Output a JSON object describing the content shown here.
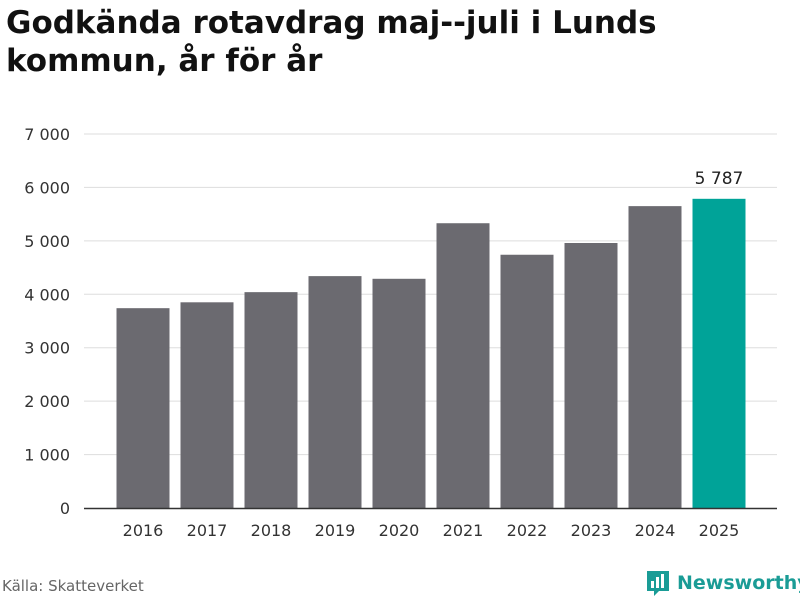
{
  "title": "Godkända rotavdrag maj--juli i Lunds kommun, år för år",
  "source": "Källa: Skatteverket",
  "brand": {
    "name": "Newsworthy",
    "icon": "bar-chart-logo-icon"
  },
  "colors": {
    "bar": "#6b6a70",
    "highlight": "#00a398",
    "grid": "#dddddd",
    "brand": "#1a9c96"
  },
  "chart_data": {
    "type": "bar",
    "title": "Godkända rotavdrag maj--juli i Lunds kommun, år för år",
    "xlabel": "",
    "ylabel": "",
    "categories": [
      "2016",
      "2017",
      "2018",
      "2019",
      "2020",
      "2021",
      "2022",
      "2023",
      "2024",
      "2025"
    ],
    "values": [
      3740,
      3850,
      4040,
      4340,
      4290,
      5330,
      4740,
      4960,
      5650,
      5787
    ],
    "highlight_index": 9,
    "data_labels": [
      {
        "index": 9,
        "text": "5 787"
      }
    ],
    "ylim": [
      0,
      7000
    ],
    "yticks": [
      0,
      1000,
      2000,
      3000,
      4000,
      5000,
      6000,
      7000
    ],
    "ytick_labels": [
      "0",
      "1 000",
      "2 000",
      "3 000",
      "4 000",
      "5 000",
      "6 000",
      "7 000"
    ],
    "grid": true,
    "legend": "none"
  }
}
